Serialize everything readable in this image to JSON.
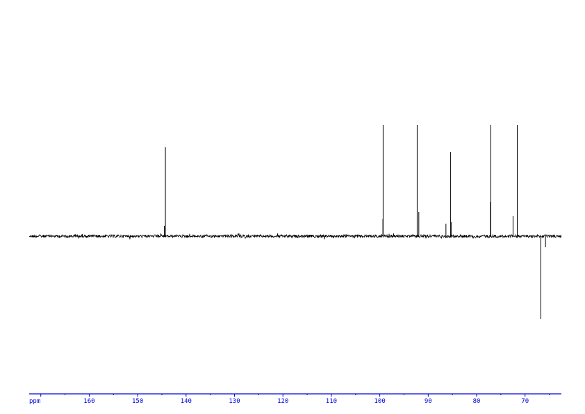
{
  "chart_data": {
    "type": "line",
    "title": "",
    "xlabel": "ppm",
    "ylabel": "",
    "xlim": [
      172.4,
      62.5
    ],
    "x_reversed": true,
    "grid": false,
    "legend": "none",
    "axis_color": "#0000e0",
    "trace_color": "#000000",
    "x_major_ticks": [
      170,
      160,
      150,
      140,
      130,
      120,
      110,
      100,
      90,
      80,
      70
    ],
    "x_tick_labels": [
      "",
      "160",
      "150",
      "140",
      "130",
      "120",
      "110",
      "100",
      "90",
      "80",
      "70"
    ],
    "x_minor_ticks": [
      165,
      155,
      145,
      135,
      125,
      115,
      105,
      95,
      85,
      75,
      65
    ],
    "peaks": [
      {
        "ppm": 144.49,
        "intensity": 15
      },
      {
        "ppm": 144.27,
        "intensity": 128
      },
      {
        "ppm": 99.36,
        "intensity": 25
      },
      {
        "ppm": 99.31,
        "intensity": 160
      },
      {
        "ppm": 92.28,
        "intensity": 160
      },
      {
        "ppm": 91.94,
        "intensity": 35
      },
      {
        "ppm": 86.34,
        "intensity": 18
      },
      {
        "ppm": 85.4,
        "intensity": 121
      },
      {
        "ppm": 85.26,
        "intensity": 20
      },
      {
        "ppm": 77.14,
        "intensity": 49
      },
      {
        "ppm": 77.07,
        "intensity": 160
      },
      {
        "ppm": 72.48,
        "intensity": 29
      },
      {
        "ppm": 71.61,
        "intensity": 160
      },
      {
        "ppm": 66.74,
        "intensity": -119
      },
      {
        "ppm": 65.78,
        "intensity": -16
      }
    ]
  }
}
